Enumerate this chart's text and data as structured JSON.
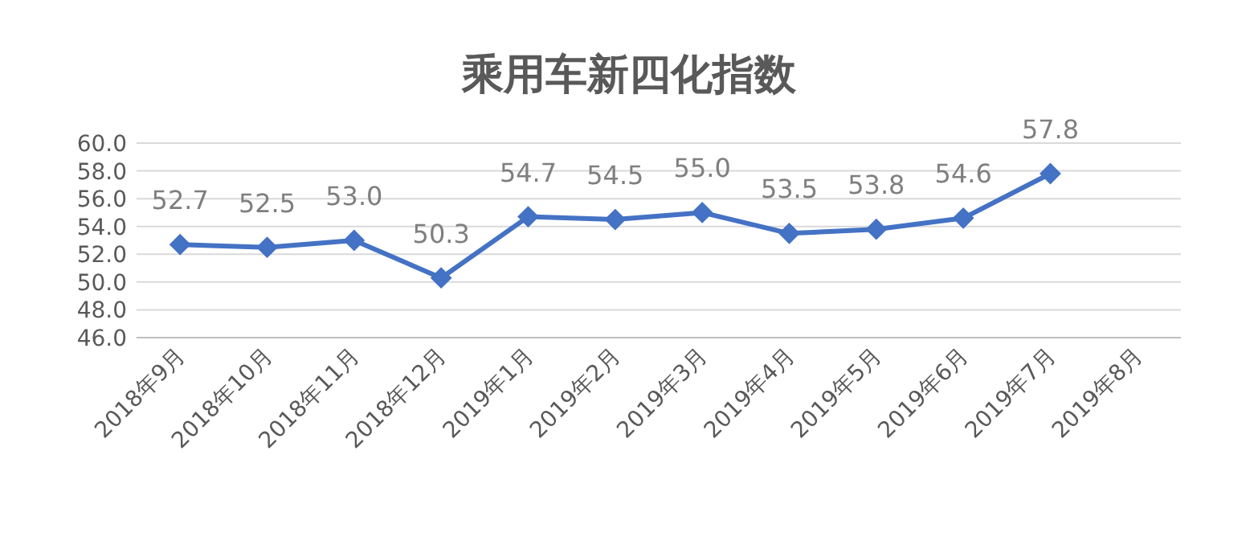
{
  "chart_data": {
    "type": "line",
    "title": "乘用车新四化指数",
    "categories": [
      "2018年9月",
      "2018年10月",
      "2018年11月",
      "2018年12月",
      "2019年1月",
      "2019年2月",
      "2019年3月",
      "2019年4月",
      "2019年5月",
      "2019年6月",
      "2019年7月",
      "2019年8月"
    ],
    "values": [
      52.7,
      52.5,
      53.0,
      50.3,
      54.7,
      54.5,
      55.0,
      53.5,
      53.8,
      54.6,
      57.8,
      null
    ],
    "color": "#4472c4",
    "marker": "diamond",
    "line_style": "solid",
    "value_labels": [
      "52.7",
      "52.5",
      "53.0",
      "50.3",
      "54.7",
      "54.5",
      "55.0",
      "53.5",
      "53.8",
      "54.6",
      "57.8",
      null
    ],
    "grid": "y",
    "ylim": [
      46,
      60
    ],
    "yticks": [
      {
        "value": 46,
        "label": "46.0"
      },
      {
        "value": 48,
        "label": "48.0"
      },
      {
        "value": 50,
        "label": "50.0"
      },
      {
        "value": 52,
        "label": "52.0"
      },
      {
        "value": 54,
        "label": "54.0"
      },
      {
        "value": 56,
        "label": "56.0"
      },
      {
        "value": 58,
        "label": "58.0"
      },
      {
        "value": 60,
        "label": "60.0"
      }
    ]
  }
}
